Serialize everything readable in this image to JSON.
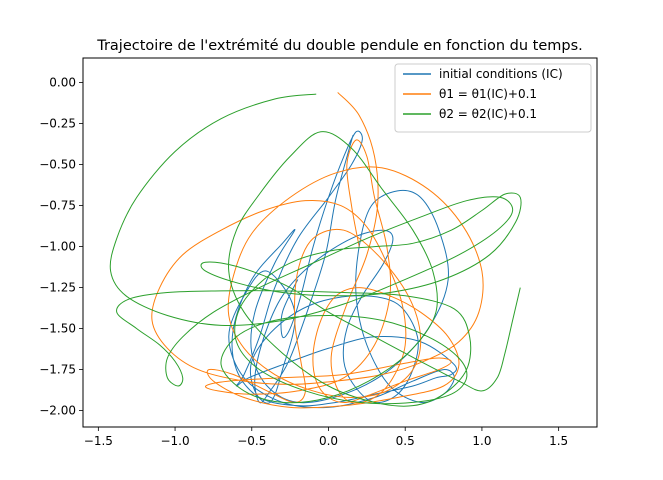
{
  "chart_data": {
    "type": "line",
    "title": "Trajectoire de l'extrémité du double pendule en fonction du temps.",
    "xlabel": "",
    "ylabel": "",
    "xlim": [
      -1.6,
      1.75
    ],
    "ylim": [
      -2.1,
      0.15
    ],
    "grid": false,
    "legend_position": "top-right",
    "x_ticks": [
      -1.5,
      -1.0,
      -0.5,
      0.0,
      0.5,
      1.0,
      1.5
    ],
    "x_tick_labels": [
      "−1.5",
      "−1.0",
      "−0.5",
      "0.0",
      "0.5",
      "1.0",
      "1.5"
    ],
    "y_ticks": [
      0.0,
      -0.25,
      -0.5,
      -0.75,
      -1.0,
      -1.25,
      -1.5,
      -1.75,
      -2.0
    ],
    "y_tick_labels": [
      "0.00",
      "−0.25",
      "−0.50",
      "−0.75",
      "−1.00",
      "−1.25",
      "−1.50",
      "−1.75",
      "−2.00"
    ],
    "series": [
      {
        "name": "initial conditions (IC)",
        "color": "#1f77b4",
        "x": [
          0.16,
          0.05,
          -0.02,
          -0.14,
          -0.26,
          -0.38,
          -0.45,
          -0.48,
          -0.42,
          -0.3,
          -0.1,
          0.15,
          0.35,
          0.42,
          0.36,
          0.22,
          0.12,
          0.1,
          0.17,
          0.3,
          0.45,
          0.55,
          0.58,
          0.45,
          0.2,
          -0.1,
          -0.35,
          -0.5,
          -0.48,
          -0.38,
          -0.3,
          -0.22,
          -0.4,
          -0.55,
          -0.65,
          -0.55,
          -0.3,
          0.0,
          0.3,
          0.55,
          0.75,
          0.82,
          0.75,
          0.6,
          0.4,
          0.25,
          0.18,
          0.2,
          0.28,
          0.45,
          0.6,
          0.72,
          0.78,
          0.65,
          0.4,
          0.1,
          -0.2,
          -0.4,
          -0.5,
          -0.48,
          -0.35,
          -0.22,
          -0.3,
          -0.5,
          -0.62,
          -0.6,
          -0.45,
          -0.2,
          0.05,
          0.3,
          0.55,
          0.7,
          0.8,
          0.82,
          0.6,
          0.3,
          0.0,
          -0.3,
          -0.52,
          -0.6,
          -0.55,
          -0.45,
          -0.35,
          -0.2,
          0.0,
          0.15,
          0.22,
          0.18,
          0.1,
          0.0,
          -0.1,
          -0.18,
          -0.25,
          -0.3,
          -0.3,
          -0.2
        ],
        "y": [
          -0.32,
          -0.7,
          -1.05,
          -1.4,
          -1.7,
          -1.88,
          -1.95,
          -1.8,
          -1.55,
          -1.3,
          -1.1,
          -0.95,
          -0.9,
          -0.95,
          -1.1,
          -1.3,
          -1.5,
          -1.7,
          -1.85,
          -1.95,
          -1.9,
          -1.75,
          -1.55,
          -1.35,
          -1.3,
          -1.35,
          -1.5,
          -1.7,
          -1.88,
          -1.95,
          -1.75,
          -1.4,
          -1.15,
          -1.3,
          -1.55,
          -1.8,
          -1.95,
          -1.98,
          -1.92,
          -1.82,
          -1.75,
          -1.8,
          -1.9,
          -1.95,
          -1.85,
          -1.6,
          -1.3,
          -1.0,
          -0.75,
          -0.66,
          -0.7,
          -0.9,
          -1.2,
          -1.5,
          -1.75,
          -1.9,
          -1.95,
          -1.85,
          -1.65,
          -1.4,
          -1.1,
          -0.9,
          -0.98,
          -1.2,
          -1.5,
          -1.75,
          -1.92,
          -1.97,
          -1.95,
          -1.9,
          -1.85,
          -1.8,
          -1.78,
          -1.72,
          -1.58,
          -1.55,
          -1.62,
          -1.72,
          -1.8,
          -1.85,
          -1.78,
          -1.55,
          -1.25,
          -0.95,
          -0.7,
          -0.5,
          -0.35,
          -0.3,
          -0.45,
          -0.7,
          -1.0,
          -1.3,
          -1.5,
          -1.55,
          -1.4,
          -1.2
        ]
      },
      {
        "name": "θ1 = θ1(IC)+0.1",
        "color": "#ff7f0e",
        "x": [
          0.06,
          0.2,
          0.3,
          0.32,
          0.25,
          0.12,
          0.02,
          0.05,
          0.15,
          0.3,
          0.42,
          0.5,
          0.48,
          0.38,
          0.25,
          0.08,
          -0.15,
          -0.42,
          -0.7,
          -0.95,
          -1.1,
          -1.15,
          -1.05,
          -0.85,
          -0.55,
          -0.25,
          0.05,
          0.35,
          0.62,
          0.85,
          0.98,
          1.0,
          0.88,
          0.65,
          0.35,
          0.05,
          -0.25,
          -0.5,
          -0.62,
          -0.65,
          -0.55,
          -0.35,
          -0.1,
          0.15,
          0.38,
          0.55,
          0.6,
          0.52,
          0.32,
          0.1,
          -0.1,
          -0.2,
          -0.22,
          -0.18,
          -0.15,
          -0.22,
          -0.4,
          -0.62,
          -0.78,
          -0.75,
          -0.55,
          -0.25,
          0.1,
          0.45,
          0.75,
          0.85,
          0.78,
          0.6,
          0.4,
          0.2,
          0.05,
          -0.05,
          -0.1,
          -0.08,
          0.0,
          0.12,
          0.28,
          0.5,
          0.72,
          0.8,
          0.7,
          0.45,
          0.1,
          -0.3,
          -0.65,
          -0.8,
          -0.72,
          -0.5,
          -0.2,
          0.1,
          0.3,
          0.4,
          0.38,
          0.3,
          0.25,
          0.18,
          0.12,
          0.15,
          0.2
        ],
        "y": [
          -0.06,
          -0.2,
          -0.45,
          -0.75,
          -1.05,
          -1.35,
          -1.65,
          -1.85,
          -1.95,
          -1.92,
          -1.8,
          -1.6,
          -1.35,
          -1.1,
          -0.88,
          -0.75,
          -0.72,
          -0.78,
          -0.9,
          -1.05,
          -1.25,
          -1.45,
          -1.62,
          -1.75,
          -1.82,
          -1.84,
          -1.82,
          -1.78,
          -1.7,
          -1.58,
          -1.4,
          -1.15,
          -0.88,
          -0.65,
          -0.52,
          -0.55,
          -0.7,
          -0.92,
          -1.18,
          -1.42,
          -1.62,
          -1.78,
          -1.88,
          -1.92,
          -1.88,
          -1.75,
          -1.55,
          -1.3,
          -1.05,
          -0.9,
          -0.95,
          -1.15,
          -1.45,
          -1.7,
          -1.88,
          -1.95,
          -1.88,
          -1.78,
          -1.75,
          -1.82,
          -1.92,
          -1.98,
          -1.97,
          -1.92,
          -1.85,
          -1.72,
          -1.55,
          -1.4,
          -1.3,
          -1.25,
          -1.3,
          -1.45,
          -1.65,
          -1.82,
          -1.92,
          -1.95,
          -1.9,
          -1.82,
          -1.75,
          -1.7,
          -1.68,
          -1.72,
          -1.78,
          -1.8,
          -1.82,
          -1.85,
          -1.88,
          -1.9,
          -1.88,
          -1.8,
          -1.6,
          -1.3,
          -1.0,
          -0.7,
          -0.45,
          -0.35,
          -0.5,
          -0.75,
          -1.0
        ]
      },
      {
        "name": "θ2 = θ2(IC)+0.1",
        "color": "#2ca02c",
        "x": [
          -0.08,
          -0.35,
          -0.7,
          -1.0,
          -1.25,
          -1.38,
          -1.42,
          -1.32,
          -1.05,
          -0.7,
          -0.3,
          0.1,
          0.5,
          0.85,
          1.1,
          1.2,
          1.12,
          0.9,
          0.6,
          0.25,
          -0.1,
          -0.45,
          -0.75,
          -0.95,
          -1.05,
          -1.05,
          -0.98,
          -0.95,
          -1.0,
          -1.1,
          -1.25,
          -1.38,
          -1.3,
          -1.05,
          -0.7,
          -0.3,
          0.1,
          0.5,
          0.82,
          0.92,
          0.9,
          0.75,
          0.55,
          0.3,
          0.0,
          -0.3,
          -0.55,
          -0.65,
          -0.6,
          -0.45,
          -0.25,
          -0.05,
          0.15,
          0.35,
          0.55,
          0.68,
          0.7,
          0.55,
          0.3,
          0.0,
          -0.3,
          -0.55,
          -0.7,
          -0.6,
          -0.35,
          0.0,
          0.35,
          0.65,
          0.85,
          0.9,
          0.8,
          0.55,
          0.2,
          -0.15,
          -0.45,
          -0.6,
          -0.58,
          -0.42,
          -0.2,
          0.05,
          0.3,
          0.55,
          0.8,
          1.0,
          1.15,
          1.25,
          1.22,
          1.05,
          0.75,
          0.4,
          0.05,
          -0.3,
          -0.6,
          -0.8,
          -0.82,
          -0.7,
          -0.5,
          -0.25,
          0.0,
          0.3,
          0.6,
          0.85,
          1.0,
          1.1,
          1.15,
          1.2,
          1.25
        ],
        "y": [
          -0.07,
          -0.1,
          -0.22,
          -0.42,
          -0.7,
          -0.95,
          -1.15,
          -1.3,
          -1.42,
          -1.48,
          -1.45,
          -1.35,
          -1.2,
          -1.05,
          -0.9,
          -0.78,
          -0.7,
          -0.72,
          -0.82,
          -0.95,
          -1.1,
          -1.25,
          -1.4,
          -1.55,
          -1.68,
          -1.8,
          -1.85,
          -1.8,
          -1.7,
          -1.6,
          -1.5,
          -1.4,
          -1.32,
          -1.28,
          -1.27,
          -1.27,
          -1.28,
          -1.3,
          -1.38,
          -1.55,
          -1.75,
          -1.9,
          -1.97,
          -1.95,
          -1.85,
          -1.65,
          -1.4,
          -1.15,
          -0.9,
          -0.68,
          -0.45,
          -0.3,
          -0.4,
          -0.65,
          -0.9,
          -1.15,
          -1.4,
          -1.62,
          -1.8,
          -1.92,
          -1.95,
          -1.88,
          -1.72,
          -1.55,
          -1.45,
          -1.42,
          -1.45,
          -1.55,
          -1.68,
          -1.8,
          -1.9,
          -1.95,
          -1.95,
          -1.88,
          -1.75,
          -1.58,
          -1.38,
          -1.2,
          -1.08,
          -1.02,
          -1.0,
          -0.98,
          -0.9,
          -0.78,
          -0.68,
          -0.7,
          -0.85,
          -1.05,
          -1.2,
          -1.28,
          -1.3,
          -1.28,
          -1.22,
          -1.15,
          -1.1,
          -1.1,
          -1.15,
          -1.25,
          -1.4,
          -1.55,
          -1.7,
          -1.82,
          -1.88,
          -1.8,
          -1.65,
          -1.45,
          -1.25
        ]
      }
    ]
  }
}
